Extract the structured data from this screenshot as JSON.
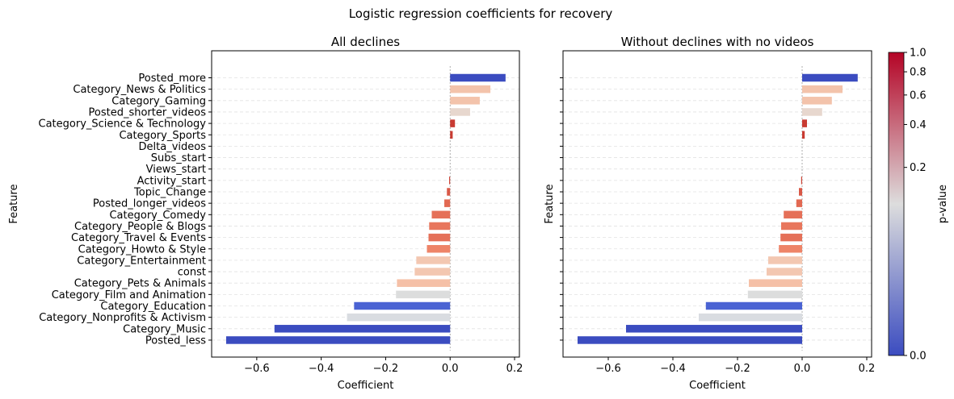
{
  "figure": {
    "suptitle": "Logistic regression coefficients for recovery"
  },
  "colorbar": {
    "label": "p-value",
    "ticks": [
      {
        "value": 0.0,
        "label": "0.0"
      },
      {
        "value": 0.2,
        "label": "0.2"
      },
      {
        "value": 0.4,
        "label": "0.4"
      },
      {
        "value": 0.6,
        "label": "0.6"
      },
      {
        "value": 0.8,
        "label": "0.8"
      },
      {
        "value": 1.0,
        "label": "1.0"
      }
    ],
    "colormap": "coolwarm",
    "color_low": "#3b4cc0",
    "color_mid": "#dddddd",
    "color_high": "#b40426"
  },
  "chart_data": [
    {
      "type": "bar",
      "orientation": "horizontal",
      "title": "All declines",
      "xlabel": "Coefficient",
      "ylabel": "Feature",
      "xlim": [
        -0.74,
        0.215
      ],
      "xticks": [
        {
          "value": -0.6,
          "label": "−0.6"
        },
        {
          "value": -0.4,
          "label": "−0.4"
        },
        {
          "value": -0.2,
          "label": "−0.2"
        },
        {
          "value": 0.0,
          "label": "0.0"
        },
        {
          "value": 0.2,
          "label": "0.2"
        }
      ],
      "show_ytick_labels": true,
      "grid": "horizontal dashed",
      "categories": [
        "Posted_more",
        "Category_News & Politics",
        "Category_Gaming",
        "Posted_shorter_videos",
        "Category_Science & Technology",
        "Category_Sports",
        "Delta_videos",
        "Subs_start",
        "Views_start",
        "Activity_start",
        "Topic_Change",
        "Posted_longer_videos",
        "Category_Comedy",
        "Category_People & Blogs",
        "Category_Travel & Events",
        "Category_Howto & Style",
        "Category_Entertainment",
        "const",
        "Category_Pets & Animals",
        "Category_Film and Animation",
        "Category_Education",
        "Category_Nonprofits & Activism",
        "Category_Music",
        "Posted_less"
      ],
      "values": [
        0.172,
        0.125,
        0.092,
        0.062,
        0.015,
        0.008,
        0.0,
        0.0,
        0.0,
        -0.003,
        -0.01,
        -0.018,
        -0.057,
        -0.065,
        -0.067,
        -0.072,
        -0.105,
        -0.11,
        -0.165,
        -0.168,
        -0.298,
        -0.32,
        -0.545,
        -0.695
      ],
      "colors": [
        "#3b4cc0",
        "#f3c3ab",
        "#f3c3ab",
        "#e7d7ce",
        "#c83b32",
        "#c83b32",
        "#dddddd",
        "#dddddd",
        "#dddddd",
        "#cc4436",
        "#d95847",
        "#e26952",
        "#e57058",
        "#e8765c",
        "#e57058",
        "#ee8468",
        "#f3c7b1",
        "#f3c7b1",
        "#f5c0a7",
        "#dcdddd",
        "#4a63d3",
        "#d9dce1",
        "#3b4cc0",
        "#3b4cc0"
      ]
    },
    {
      "type": "bar",
      "orientation": "horizontal",
      "title": "Without declines with no videos",
      "xlabel": "Coefficient",
      "ylabel": "Feature",
      "xlim": [
        -0.74,
        0.215
      ],
      "xticks": [
        {
          "value": -0.6,
          "label": "−0.6"
        },
        {
          "value": -0.4,
          "label": "−0.4"
        },
        {
          "value": -0.2,
          "label": "−0.2"
        },
        {
          "value": 0.0,
          "label": "0.0"
        },
        {
          "value": 0.2,
          "label": "0.2"
        }
      ],
      "show_ytick_labels": false,
      "grid": "horizontal dashed",
      "categories": [
        "Posted_more",
        "Category_News & Politics",
        "Category_Gaming",
        "Posted_shorter_videos",
        "Category_Science & Technology",
        "Category_Sports",
        "Delta_videos",
        "Subs_start",
        "Views_start",
        "Activity_start",
        "Topic_Change",
        "Posted_longer_videos",
        "Category_Comedy",
        "Category_People & Blogs",
        "Category_Travel & Events",
        "Category_Howto & Style",
        "Category_Entertainment",
        "const",
        "Category_Pets & Animals",
        "Category_Film and Animation",
        "Category_Education",
        "Category_Nonprofits & Activism",
        "Category_Music",
        "Posted_less"
      ],
      "values": [
        0.172,
        0.125,
        0.092,
        0.062,
        0.015,
        0.008,
        0.0,
        0.0,
        0.0,
        -0.003,
        -0.01,
        -0.018,
        -0.057,
        -0.065,
        -0.067,
        -0.072,
        -0.105,
        -0.11,
        -0.165,
        -0.168,
        -0.298,
        -0.32,
        -0.545,
        -0.695
      ],
      "colors": [
        "#3b4cc0",
        "#f3c3ab",
        "#f3c3ab",
        "#e7d7ce",
        "#c83b32",
        "#c83b32",
        "#dddddd",
        "#dddddd",
        "#dddddd",
        "#cc4436",
        "#d95847",
        "#e26952",
        "#e57058",
        "#e8765c",
        "#e57058",
        "#ee8468",
        "#f3c7b1",
        "#f3c7b1",
        "#f5c0a7",
        "#dcdddd",
        "#4a63d3",
        "#d9dce1",
        "#3b4cc0",
        "#3b4cc0"
      ]
    }
  ]
}
